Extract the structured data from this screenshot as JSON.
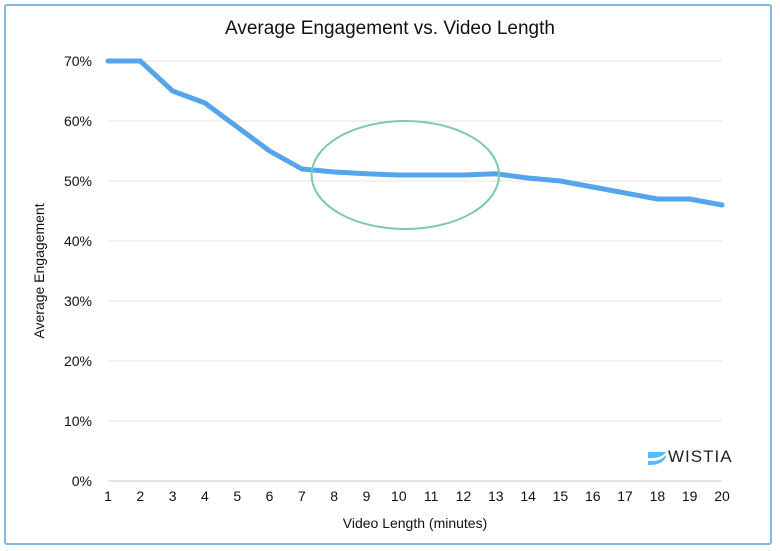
{
  "chart_data": {
    "type": "line",
    "title": "Average Engagement vs. Video Length",
    "xlabel": "Video Length (minutes)",
    "ylabel": "Average Engagement",
    "x": [
      1,
      2,
      3,
      4,
      5,
      6,
      7,
      8,
      9,
      10,
      11,
      12,
      13,
      14,
      15,
      16,
      17,
      18,
      19,
      20
    ],
    "series": [
      {
        "values": [
          70,
          70,
          65,
          63,
          59,
          55,
          52,
          51.5,
          51.2,
          51,
          51,
          51,
          51.2,
          50.5,
          50,
          49,
          48,
          47,
          47,
          46
        ],
        "color": "#55a5ec"
      }
    ],
    "ylim": [
      0,
      70
    ],
    "xlim": [
      1,
      20
    ],
    "yticks": [
      "0%",
      "10%",
      "20%",
      "30%",
      "40%",
      "50%",
      "60%",
      "70%"
    ],
    "ytick_values": [
      0,
      10,
      20,
      30,
      40,
      50,
      60,
      70
    ],
    "xticks": [
      "1",
      "2",
      "3",
      "4",
      "5",
      "6",
      "7",
      "8",
      "9",
      "10",
      "11",
      "12",
      "13",
      "14",
      "15",
      "16",
      "17",
      "18",
      "19",
      "20"
    ],
    "grid": true,
    "annotation": {
      "type": "ellipse",
      "center_x": 10.2,
      "center_y": 51,
      "radius_x": 2.9,
      "radius_y": 9,
      "color": "#7cc9ae"
    }
  },
  "logo": {
    "text": "WISTIA",
    "icon": "wistia-logo-icon",
    "color": "#54bbff"
  }
}
